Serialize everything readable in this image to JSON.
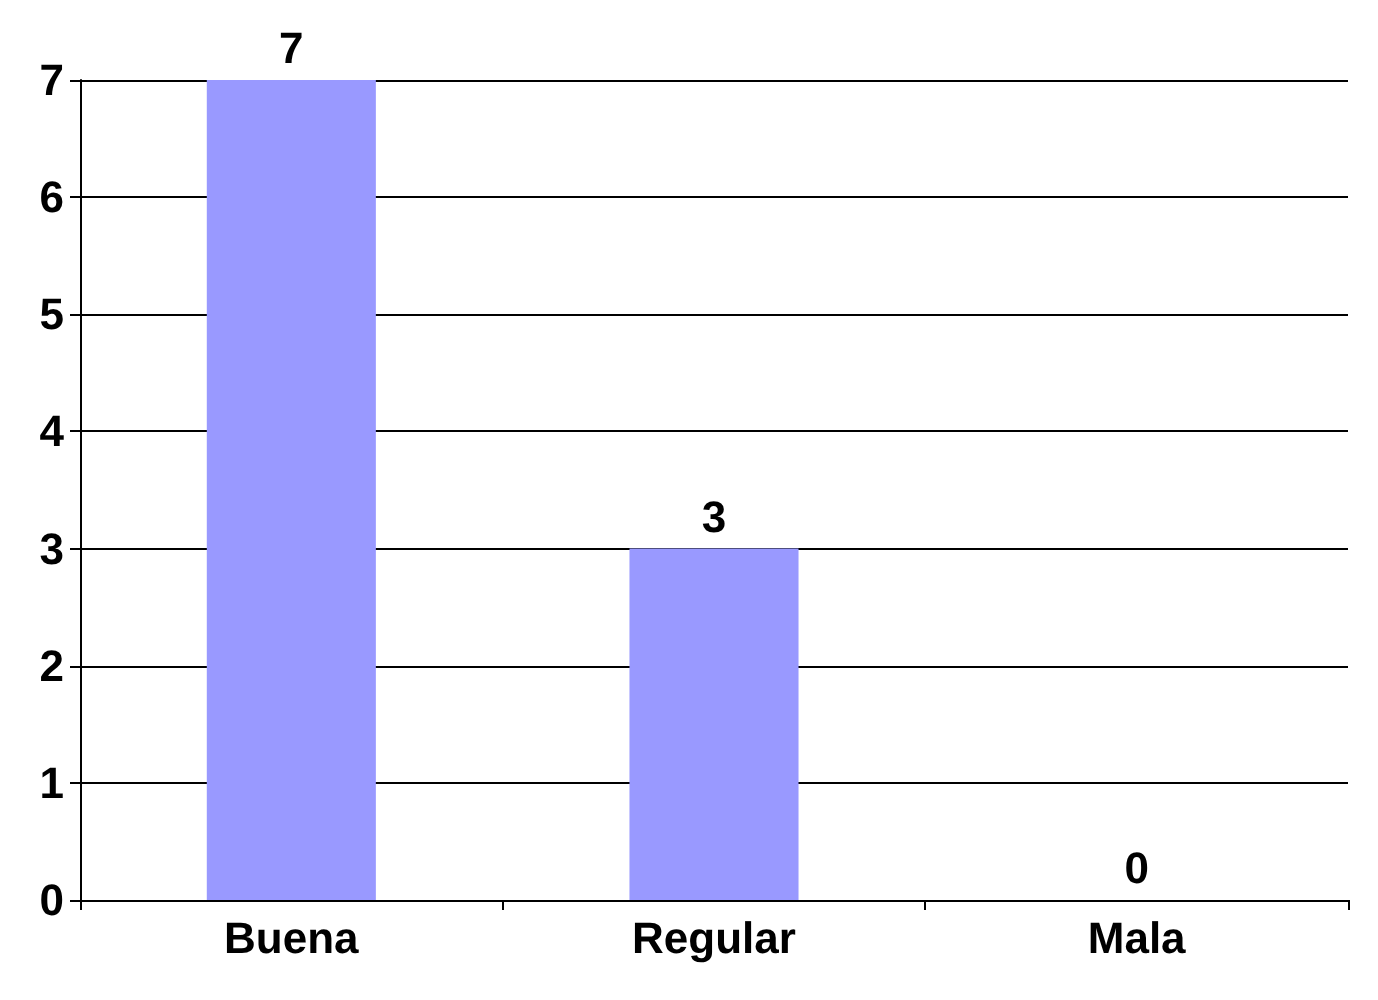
{
  "chart_data": {
    "type": "bar",
    "categories": [
      "Buena",
      "Regular",
      "Mala"
    ],
    "values": [
      7,
      3,
      0
    ],
    "color": "#9999ff",
    "ylim": [
      0,
      7
    ],
    "yticks": [
      0,
      1,
      2,
      3,
      4,
      5,
      6,
      7
    ],
    "grid": "y",
    "data_labels": true
  }
}
